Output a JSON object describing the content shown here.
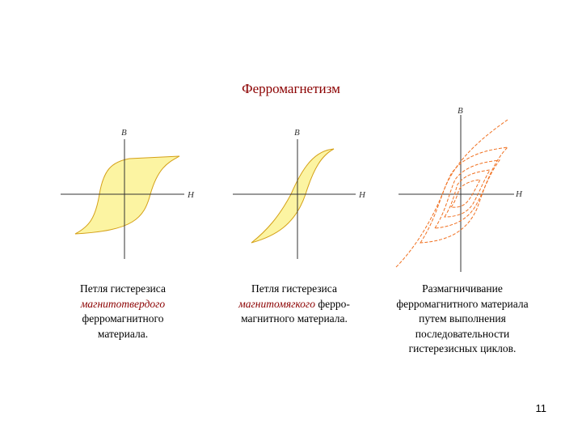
{
  "slide": {
    "title": "Ферромагнетизм",
    "page_number": "11"
  },
  "figures": [
    {
      "axis_x": "H",
      "axis_y": "B",
      "caption_line1": "Петля гистерезиса",
      "caption_em": "магнитотвердого",
      "caption_rest": "ферромагнитного материала."
    },
    {
      "axis_x": "H",
      "axis_y": "B",
      "caption_line1": "Петля гистерезиса",
      "caption_em": "магнитомягкого",
      "caption_rest": "ферро-магнитного материала."
    },
    {
      "axis_x": "H",
      "axis_y": "B",
      "caption": "Размагничивание ферромагнитного материала путем выполнения последовательности гистерезисных циклов."
    }
  ],
  "colors": {
    "title": "#8b0000",
    "loop_fill": "#fcf4a2",
    "loop_stroke": "#d4a017",
    "demag_stroke": "#f07020",
    "axis": "#333333"
  }
}
